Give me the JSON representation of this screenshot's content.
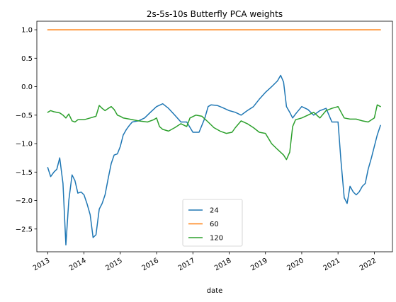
{
  "chart_data": {
    "type": "line",
    "title": "2s-5s-10s Butterfly PCA weights",
    "xlabel": "date",
    "ylabel": "",
    "xlim": [
      2012.7,
      2022.5
    ],
    "ylim": [
      -2.9,
      1.15
    ],
    "x_ticks": [
      2013,
      2014,
      2015,
      2016,
      2017,
      2018,
      2019,
      2020,
      2021,
      2022
    ],
    "x_tick_labels": [
      "2013",
      "2014",
      "2015",
      "2016",
      "2017",
      "2018",
      "2019",
      "2020",
      "2021",
      "2022"
    ],
    "y_ticks": [
      1.0,
      0.5,
      0.0,
      -0.5,
      -1.0,
      -1.5,
      -2.0,
      -2.5
    ],
    "y_tick_labels": [
      "1.0",
      "0.5",
      "0.0",
      "−0.5",
      "−1.0",
      "−1.5",
      "−2.0",
      "−2.5"
    ],
    "grid": false,
    "legend_placement": "lower center",
    "series": [
      {
        "name": "24",
        "color": "#1f77b4",
        "x": [
          2013.0,
          2013.08,
          2013.17,
          2013.25,
          2013.33,
          2013.42,
          2013.5,
          2013.58,
          2013.67,
          2013.75,
          2013.83,
          2013.92,
          2014.0,
          2014.08,
          2014.17,
          2014.25,
          2014.33,
          2014.42,
          2014.5,
          2014.58,
          2014.67,
          2014.75,
          2014.83,
          2014.92,
          2015.0,
          2015.08,
          2015.17,
          2015.25,
          2015.33,
          2015.5,
          2015.67,
          2015.83,
          2016.0,
          2016.17,
          2016.33,
          2016.5,
          2016.67,
          2016.83,
          2017.0,
          2017.17,
          2017.33,
          2017.42,
          2017.5,
          2017.67,
          2017.83,
          2018.0,
          2018.17,
          2018.33,
          2018.5,
          2018.67,
          2018.83,
          2019.0,
          2019.17,
          2019.33,
          2019.42,
          2019.5,
          2019.58,
          2019.67,
          2019.75,
          2019.83,
          2020.0,
          2020.17,
          2020.33,
          2020.5,
          2020.67,
          2020.83,
          2021.0,
          2021.08,
          2021.17,
          2021.25,
          2021.33,
          2021.42,
          2021.5,
          2021.58,
          2021.67,
          2021.75,
          2021.83,
          2021.92,
          2022.0,
          2022.08,
          2022.17
        ],
        "values": [
          -1.42,
          -1.58,
          -1.5,
          -1.45,
          -1.25,
          -1.7,
          -2.78,
          -2.0,
          -1.55,
          -1.65,
          -1.87,
          -1.85,
          -1.9,
          -2.05,
          -2.25,
          -2.65,
          -2.6,
          -2.15,
          -2.05,
          -1.9,
          -1.6,
          -1.35,
          -1.2,
          -1.18,
          -1.05,
          -0.85,
          -0.75,
          -0.68,
          -0.62,
          -0.6,
          -0.55,
          -0.45,
          -0.35,
          -0.3,
          -0.38,
          -0.5,
          -0.62,
          -0.62,
          -0.8,
          -0.8,
          -0.55,
          -0.35,
          -0.32,
          -0.33,
          -0.37,
          -0.42,
          -0.45,
          -0.5,
          -0.42,
          -0.35,
          -0.22,
          -0.1,
          0.0,
          0.1,
          0.2,
          0.08,
          -0.35,
          -0.45,
          -0.55,
          -0.48,
          -0.35,
          -0.4,
          -0.5,
          -0.42,
          -0.38,
          -0.62,
          -0.62,
          -1.3,
          -1.95,
          -2.05,
          -1.75,
          -1.85,
          -1.9,
          -1.85,
          -1.75,
          -1.7,
          -1.45,
          -1.25,
          -1.05,
          -0.85,
          -0.68
        ]
      },
      {
        "name": "60",
        "color": "#ff7f0e",
        "x": [
          2013.0,
          2022.17
        ],
        "values": [
          1.0,
          1.0
        ]
      },
      {
        "name": "120",
        "color": "#2ca02c",
        "x": [
          2013.0,
          2013.08,
          2013.17,
          2013.33,
          2013.42,
          2013.5,
          2013.58,
          2013.67,
          2013.75,
          2013.83,
          2014.0,
          2014.17,
          2014.33,
          2014.42,
          2014.5,
          2014.58,
          2014.67,
          2014.75,
          2014.83,
          2014.92,
          2015.0,
          2015.08,
          2015.25,
          2015.5,
          2015.75,
          2015.92,
          2016.0,
          2016.08,
          2016.17,
          2016.33,
          2016.5,
          2016.67,
          2016.83,
          2016.92,
          2017.08,
          2017.25,
          2017.42,
          2017.58,
          2017.75,
          2017.92,
          2018.08,
          2018.17,
          2018.33,
          2018.5,
          2018.67,
          2018.83,
          2019.0,
          2019.17,
          2019.33,
          2019.5,
          2019.58,
          2019.67,
          2019.75,
          2019.83,
          2020.0,
          2020.17,
          2020.33,
          2020.5,
          2020.67,
          2020.83,
          2021.0,
          2021.17,
          2021.33,
          2021.5,
          2021.67,
          2021.83,
          2022.0,
          2022.08,
          2022.17
        ],
        "values": [
          -0.45,
          -0.42,
          -0.44,
          -0.46,
          -0.5,
          -0.55,
          -0.48,
          -0.6,
          -0.62,
          -0.58,
          -0.58,
          -0.55,
          -0.52,
          -0.33,
          -0.38,
          -0.42,
          -0.38,
          -0.35,
          -0.4,
          -0.5,
          -0.52,
          -0.55,
          -0.57,
          -0.6,
          -0.62,
          -0.58,
          -0.55,
          -0.7,
          -0.75,
          -0.78,
          -0.72,
          -0.65,
          -0.7,
          -0.55,
          -0.5,
          -0.52,
          -0.62,
          -0.72,
          -0.78,
          -0.82,
          -0.8,
          -0.72,
          -0.6,
          -0.65,
          -0.72,
          -0.8,
          -0.82,
          -1.0,
          -1.1,
          -1.2,
          -1.28,
          -1.15,
          -0.7,
          -0.58,
          -0.55,
          -0.5,
          -0.45,
          -0.55,
          -0.42,
          -0.38,
          -0.35,
          -0.55,
          -0.57,
          -0.57,
          -0.6,
          -0.62,
          -0.55,
          -0.32,
          -0.35
        ]
      }
    ]
  }
}
